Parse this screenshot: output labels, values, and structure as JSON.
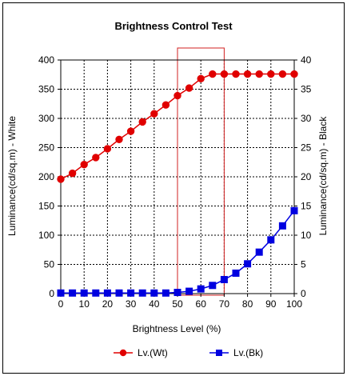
{
  "chart_data": {
    "type": "line",
    "title": "Brightness Control Test",
    "xlabel": "Brightness Level (%)",
    "ylabel_left": "Luminance(cd/sq.m) - White",
    "ylabel_right": "Luminance(cd/sq.m) - Black",
    "x": [
      0,
      5,
      10,
      15,
      20,
      25,
      30,
      35,
      40,
      45,
      50,
      55,
      60,
      65,
      70,
      75,
      80,
      85,
      90,
      95,
      100
    ],
    "x_ticks": [
      "0",
      "10",
      "20",
      "30",
      "40",
      "50",
      "60",
      "70",
      "80",
      "90",
      "100"
    ],
    "y_left_ticks": [
      "0",
      "50",
      "100",
      "150",
      "200",
      "250",
      "300",
      "350",
      "400"
    ],
    "y_right_ticks": [
      "0",
      "5",
      "10",
      "15",
      "20",
      "25",
      "30",
      "35",
      "40"
    ],
    "xlim": [
      0,
      100
    ],
    "ylim_left": [
      0,
      400
    ],
    "ylim_right": [
      0,
      40
    ],
    "grid": true,
    "legend_position": "bottom",
    "highlight_x_range": [
      50,
      70
    ],
    "highlight_color": "#d22020",
    "series": [
      {
        "name": "Lv.(Wt)",
        "axis": "left",
        "color": "#e00000",
        "marker": "circle",
        "values": [
          196,
          206,
          221,
          233,
          248,
          264,
          278,
          294,
          308,
          323,
          339,
          352,
          368,
          376,
          376,
          376,
          376,
          376,
          376,
          376,
          376
        ]
      },
      {
        "name": "Lv.(Bk)",
        "axis": "right",
        "color": "#0000e0",
        "marker": "square",
        "values": [
          0.1,
          0.1,
          0.1,
          0.1,
          0.1,
          0.1,
          0.1,
          0.1,
          0.1,
          0.1,
          0.2,
          0.4,
          0.8,
          1.4,
          2.4,
          3.5,
          5.1,
          7.1,
          9.2,
          11.6,
          14.2
        ]
      }
    ]
  }
}
